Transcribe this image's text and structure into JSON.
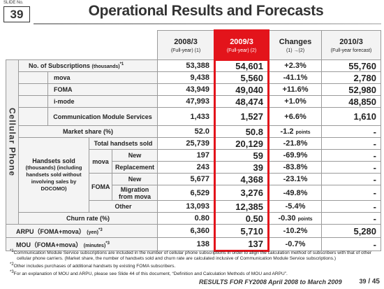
{
  "header": {
    "slide_label": "SLIDE No.",
    "slide_number": "39",
    "title": "Operational Results and Forecasts"
  },
  "table": {
    "columns": [
      {
        "line1": "2008/3",
        "line2": "(Full-year) (1)"
      },
      {
        "line1": "2009/3",
        "line2": "(Full-year) (2)"
      },
      {
        "line1": "Changes",
        "line2": "(1) →(2)"
      },
      {
        "line1": "2010/3",
        "line2": "(Full-year forecast)"
      }
    ],
    "side_label": "Cellular Phone",
    "rows": [
      {
        "label": "No. of Subscriptions",
        "label_unit": "(thousands)",
        "label_note": "*1",
        "v1": "53,388",
        "v2": "54,601",
        "change": "+2.3%",
        "v4": "55,760"
      },
      {
        "label": "mova",
        "v1": "9,438",
        "v2": "5,560",
        "change": "-41.1%",
        "v4": "2,780"
      },
      {
        "label": "FOMA",
        "v1": "43,949",
        "v2": "49,040",
        "change": "+11.6%",
        "v4": "52,980"
      },
      {
        "label": "i-mode",
        "v1": "47,993",
        "v2": "48,474",
        "change": "+1.0%",
        "v4": "48,850"
      },
      {
        "label": "Communication Module Services",
        "v1": "1,433",
        "v2": "1,527",
        "change": "+6.6%",
        "v4": "1,610"
      },
      {
        "label": "Market share (%)",
        "v1": "52.0",
        "v2": "50.8",
        "change": "-1.2",
        "change_unit": "points",
        "v4": "-"
      },
      {
        "group": "Handsets sold",
        "group_note": "(thousands) (including handsets sold without involving sales by DOCOMO)",
        "label": "Total handsets sold",
        "v1": "25,739",
        "v2": "20,129",
        "change": "-21.8%",
        "v4": "-"
      },
      {
        "subgroup": "mova",
        "label": "New",
        "v1": "197",
        "v2": "59",
        "change": "-69.9%",
        "v4": "-"
      },
      {
        "label": "Replacement",
        "v1": "243",
        "v2": "39",
        "change": "-83.8%",
        "v4": "-"
      },
      {
        "subgroup": "FOMA",
        "label": "New",
        "v1": "5,677",
        "v2": "4,368",
        "change": "-23.1%",
        "v4": "-"
      },
      {
        "label": "Migration from mova",
        "v1": "6,529",
        "v2": "3,276",
        "change": "-49.8%",
        "v4": "-"
      },
      {
        "label": "Other",
        "v1": "13,093",
        "v2": "12,385",
        "change": "-5.4%",
        "v4": "-"
      },
      {
        "label": "Churn rate (%)",
        "v1": "0.80",
        "v2": "0.50",
        "change": "-0.30",
        "change_unit": "points",
        "v4": "-"
      },
      {
        "label": "ARPU（FOMA+mova）",
        "label_unit": "(yen)",
        "label_note": "*3",
        "v1": "6,360",
        "v2": "5,710",
        "change": "-10.2%",
        "v4": "5,280"
      },
      {
        "label": "MOU（FOMA+mova）",
        "label_unit": "(minutes)",
        "label_note": "*3",
        "v1": "138",
        "v2": "137",
        "change": "-0.7%",
        "v4": "-"
      }
    ]
  },
  "footnotes": [
    {
      "mark": "*1",
      "text": "Communication Module Service subscriptions are included in the number of cellular phone subscriptions in order to align the calculation method of subscribers with that of other cellular phone carriers. (Market share, the number of handsets sold and churn rate are calculated inclusive of Communication Module Service subscriptions.)"
    },
    {
      "mark": "*2",
      "text": "Other includes purchases of additional handsets by existing FOMA subscribers."
    },
    {
      "mark": "*3",
      "text": "For an explanation of MOU and ARPU, please see Slide 44 of this document, “Definition and Calculation Methods of MOU and ARPU”."
    }
  ],
  "footer": {
    "text": "RESULTS FOR FY2008  April 2008 to March 2009",
    "page": "39",
    "total": "/ 45"
  }
}
